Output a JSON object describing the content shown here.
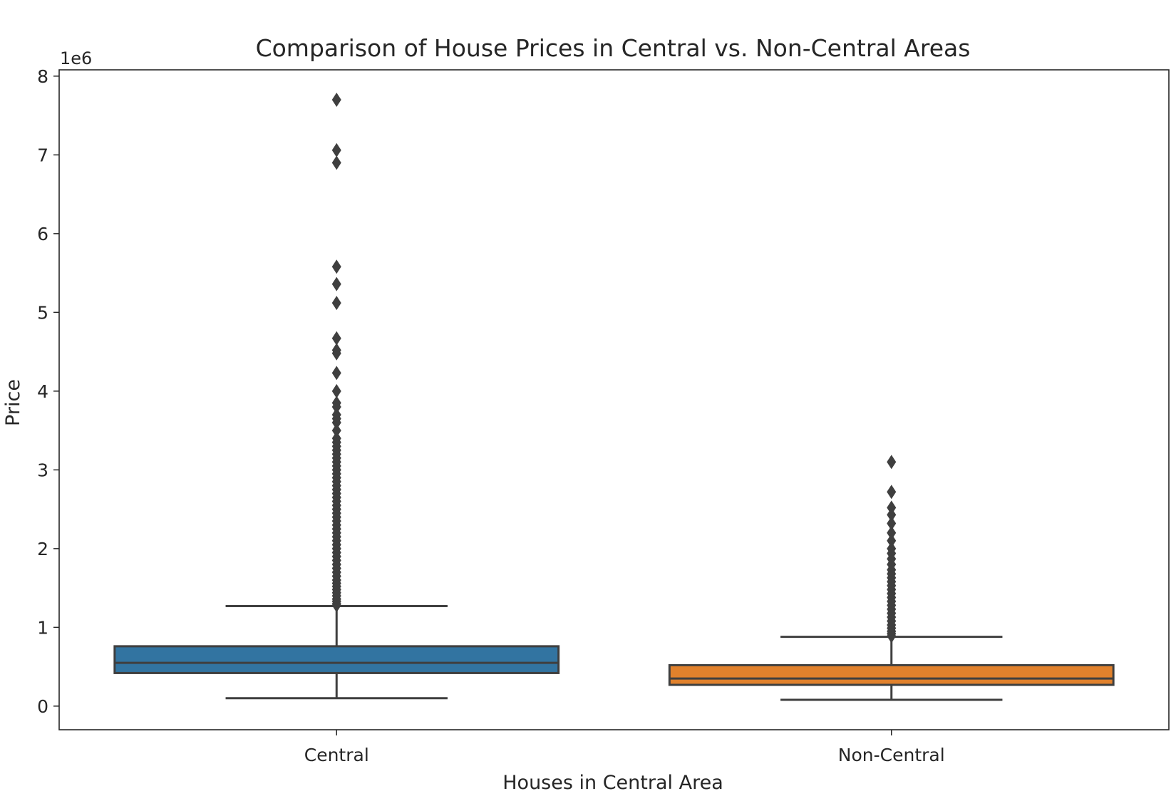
{
  "chart_data": {
    "type": "box",
    "title": "Comparison of House Prices in Central vs. Non-Central Areas",
    "xlabel": "Houses in Central Area",
    "ylabel": "Price",
    "y_offset_label": "1e6",
    "ylim": [
      -300000,
      8080000
    ],
    "yticks": [
      0,
      1,
      2,
      3,
      4,
      5,
      6,
      7,
      8
    ],
    "y_tick_scale": 1000000,
    "grid": false,
    "legend": "none",
    "categories": [
      "Central",
      "Non-Central"
    ],
    "series": [
      {
        "category": "Central",
        "color": "#3274a1",
        "edge_color": "#3f3f3f",
        "whisker_low": 100000,
        "q1": 420000,
        "median": 550000,
        "q3": 760000,
        "whisker_high": 1270000,
        "outliers": [
          1280000,
          1300000,
          1330000,
          1360000,
          1400000,
          1440000,
          1480000,
          1520000,
          1560000,
          1600000,
          1650000,
          1700000,
          1750000,
          1800000,
          1850000,
          1900000,
          1950000,
          2000000,
          2050000,
          2100000,
          2150000,
          2200000,
          2250000,
          2300000,
          2350000,
          2400000,
          2450000,
          2500000,
          2550000,
          2600000,
          2650000,
          2700000,
          2750000,
          2800000,
          2850000,
          2900000,
          2950000,
          3000000,
          3050000,
          3100000,
          3150000,
          3200000,
          3250000,
          3300000,
          3350000,
          3400000,
          3500000,
          3600000,
          3650000,
          3700000,
          3800000,
          3850000,
          4000000,
          4230000,
          4480000,
          4520000,
          4670000,
          5120000,
          5360000,
          5580000,
          6900000,
          7060000,
          7700000
        ]
      },
      {
        "category": "Non-Central",
        "color": "#e1812c",
        "edge_color": "#3f3f3f",
        "whisker_low": 80000,
        "q1": 270000,
        "median": 350000,
        "q3": 520000,
        "whisker_high": 880000,
        "outliers": [
          890000,
          920000,
          950000,
          990000,
          1030000,
          1080000,
          1130000,
          1180000,
          1230000,
          1280000,
          1330000,
          1380000,
          1430000,
          1480000,
          1530000,
          1580000,
          1630000,
          1680000,
          1730000,
          1800000,
          1870000,
          1940000,
          2000000,
          2100000,
          2200000,
          2320000,
          2430000,
          2520000,
          2720000,
          3100000
        ]
      }
    ]
  }
}
